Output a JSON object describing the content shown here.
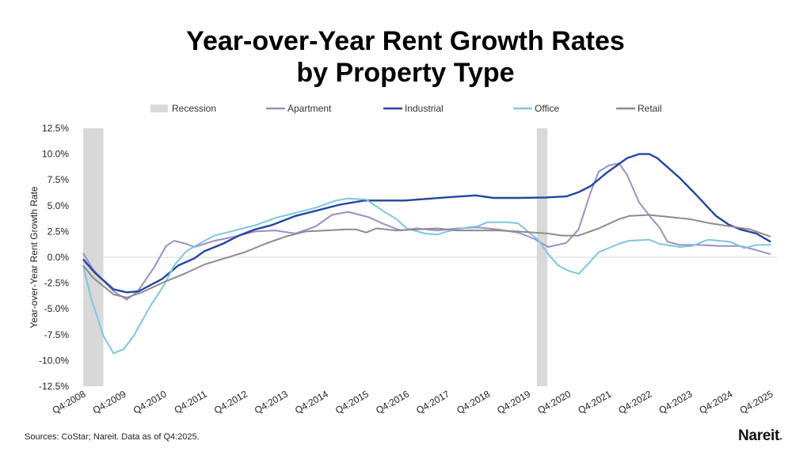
{
  "chart_data": {
    "type": "line",
    "title_line1": "Year-over-Year Rent Growth Rates",
    "title_line2": "by Property Type",
    "ylabel": "Year-over-Year Rent Growth Rate",
    "xlabel": "",
    "ylim": [
      -12.5,
      12.5
    ],
    "yticks": [
      12.5,
      10.0,
      7.5,
      5.0,
      2.5,
      0.0,
      -2.5,
      -5.0,
      -7.5,
      -10.0,
      -12.5
    ],
    "ytick_labels": [
      "12.5%",
      "10.0%",
      "7.5%",
      "5.0%",
      "2.5%",
      "0.0%",
      "-2.5%",
      "-5.0%",
      "-7.5%",
      "-10.0%",
      "-12.5%"
    ],
    "xlim": [
      2008.75,
      2025.75
    ],
    "xticks": [
      2008.75,
      2009.75,
      2010.75,
      2011.75,
      2012.75,
      2013.75,
      2014.75,
      2015.75,
      2016.75,
      2017.75,
      2018.75,
      2019.75,
      2020.75,
      2021.75,
      2022.75,
      2023.75,
      2024.75,
      2025.75
    ],
    "xtick_labels": [
      "Q4:2008",
      "Q4:2009",
      "Q4:2010",
      "Q4:2011",
      "Q4:2012",
      "Q4:2013",
      "Q4:2014",
      "Q4:2015",
      "Q4:2016",
      "Q4:2017",
      "Q4:2018",
      "Q4:2019",
      "Q4:2020",
      "Q4:2021",
      "Q4:2022",
      "Q4:2023",
      "Q4:2024",
      "Q4:2025"
    ],
    "legend_position": "top",
    "recession": {
      "name": "Recession",
      "color": "#d9d9d9",
      "periods": [
        [
          2008.75,
          2009.25
        ],
        [
          2019.97,
          2020.23
        ]
      ]
    },
    "series": [
      {
        "name": "Apartment",
        "color": "#9d8fc6",
        "x": [
          2008.75,
          2009.0,
          2009.5,
          2009.83,
          2010.1,
          2010.5,
          2010.8,
          2011.0,
          2011.3,
          2011.5,
          2012.0,
          2012.5,
          2013.0,
          2013.5,
          2014.0,
          2014.5,
          2014.9,
          2015.3,
          2015.8,
          2016.2,
          2016.6,
          2017.0,
          2017.5,
          2018.0,
          2018.5,
          2019.0,
          2019.5,
          2019.9,
          2020.25,
          2020.7,
          2021.0,
          2021.3,
          2021.5,
          2021.75,
          2022.0,
          2022.2,
          2022.5,
          2022.8,
          2023.0,
          2023.2,
          2023.5,
          2024.0,
          2024.5,
          2025.0,
          2025.3,
          2025.75
        ],
        "y": [
          0.4,
          -1.2,
          -3.3,
          -4.1,
          -3.3,
          -1.0,
          1.1,
          1.6,
          1.3,
          1.0,
          1.6,
          2.0,
          2.5,
          2.6,
          2.3,
          3.0,
          4.1,
          4.4,
          3.9,
          3.2,
          2.6,
          2.8,
          2.6,
          2.8,
          2.9,
          2.7,
          2.4,
          1.8,
          1.0,
          1.4,
          2.7,
          6.3,
          8.3,
          8.9,
          9.1,
          8.0,
          5.3,
          3.8,
          2.9,
          1.5,
          1.2,
          1.2,
          1.1,
          1.1,
          0.8,
          0.3
        ]
      },
      {
        "name": "Industrial",
        "color": "#2446a0",
        "x": [
          2008.75,
          2009.04,
          2009.5,
          2009.83,
          2010.12,
          2010.7,
          2011.1,
          2011.5,
          2011.75,
          2012.2,
          2012.6,
          2013.0,
          2013.4,
          2014.0,
          2014.5,
          2015.1,
          2015.7,
          2016.7,
          2017.7,
          2018.45,
          2018.9,
          2019.5,
          2020.2,
          2020.7,
          2021.0,
          2021.3,
          2021.7,
          2022.2,
          2022.5,
          2022.75,
          2022.95,
          2023.5,
          2023.9,
          2024.4,
          2024.7,
          2025.0,
          2025.4,
          2025.75
        ],
        "y": [
          -0.2,
          -1.5,
          -3.1,
          -3.4,
          -3.3,
          -2.1,
          -0.8,
          -0.1,
          0.6,
          1.3,
          2.1,
          2.7,
          3.1,
          4.0,
          4.5,
          5.1,
          5.5,
          5.5,
          5.8,
          6.0,
          5.75,
          5.75,
          5.8,
          5.9,
          6.3,
          6.9,
          8.2,
          9.6,
          10.0,
          10.0,
          9.6,
          7.7,
          6.1,
          4.0,
          3.2,
          2.7,
          2.3,
          1.5
        ]
      },
      {
        "name": "Office",
        "color": "#7fc6e2",
        "x": [
          2008.75,
          2008.95,
          2009.25,
          2009.5,
          2009.75,
          2010.0,
          2010.4,
          2010.75,
          2011.0,
          2011.3,
          2011.75,
          2012.0,
          2012.5,
          2013.0,
          2013.5,
          2014.0,
          2014.5,
          2015.0,
          2015.3,
          2015.75,
          2016.2,
          2016.5,
          2016.75,
          2017.2,
          2017.5,
          2017.75,
          2018.25,
          2018.5,
          2018.75,
          2019.25,
          2019.5,
          2019.75,
          2020.0,
          2020.25,
          2020.5,
          2020.75,
          2021.0,
          2021.2,
          2021.5,
          2022.0,
          2022.25,
          2022.75,
          2023.0,
          2023.5,
          2023.8,
          2024.2,
          2024.75,
          2025.1,
          2025.4,
          2025.75
        ],
        "y": [
          -0.8,
          -4.0,
          -7.6,
          -9.3,
          -8.9,
          -7.6,
          -4.8,
          -2.7,
          -0.8,
          0.6,
          1.6,
          2.1,
          2.6,
          3.1,
          3.8,
          4.3,
          4.8,
          5.5,
          5.7,
          5.6,
          4.4,
          3.7,
          2.8,
          2.3,
          2.2,
          2.5,
          2.9,
          3.0,
          3.4,
          3.4,
          3.3,
          2.5,
          1.7,
          0.3,
          -0.8,
          -1.3,
          -1.6,
          -0.8,
          0.5,
          1.3,
          1.6,
          1.7,
          1.3,
          1.0,
          1.1,
          1.7,
          1.5,
          0.9,
          1.2,
          1.2
        ]
      },
      {
        "name": "Retail",
        "color": "#8c8c8c",
        "x": [
          2008.75,
          2009.0,
          2009.5,
          2009.83,
          2010.2,
          2010.75,
          2011.25,
          2011.75,
          2012.25,
          2012.75,
          2013.25,
          2013.75,
          2014.25,
          2014.75,
          2015.25,
          2015.5,
          2015.75,
          2016.0,
          2016.5,
          2017.0,
          2017.5,
          2018.0,
          2019.0,
          2019.5,
          2020.25,
          2020.6,
          2021.0,
          2021.5,
          2022.0,
          2022.25,
          2022.75,
          2023.25,
          2023.75,
          2024.25,
          2024.75,
          2025.25,
          2025.75
        ],
        "y": [
          -0.8,
          -2.0,
          -3.6,
          -3.9,
          -3.4,
          -2.4,
          -1.6,
          -0.7,
          -0.1,
          0.5,
          1.3,
          2.0,
          2.5,
          2.6,
          2.7,
          2.7,
          2.4,
          2.8,
          2.6,
          2.7,
          2.8,
          2.6,
          2.6,
          2.5,
          2.3,
          2.1,
          2.1,
          2.8,
          3.7,
          4.0,
          4.1,
          3.9,
          3.7,
          3.3,
          3.0,
          2.7,
          2.0
        ]
      }
    ]
  },
  "footer": {
    "source": "Sources: CoStar; Nareit. Data as of Q4:2025.",
    "logo": "Nareit"
  }
}
